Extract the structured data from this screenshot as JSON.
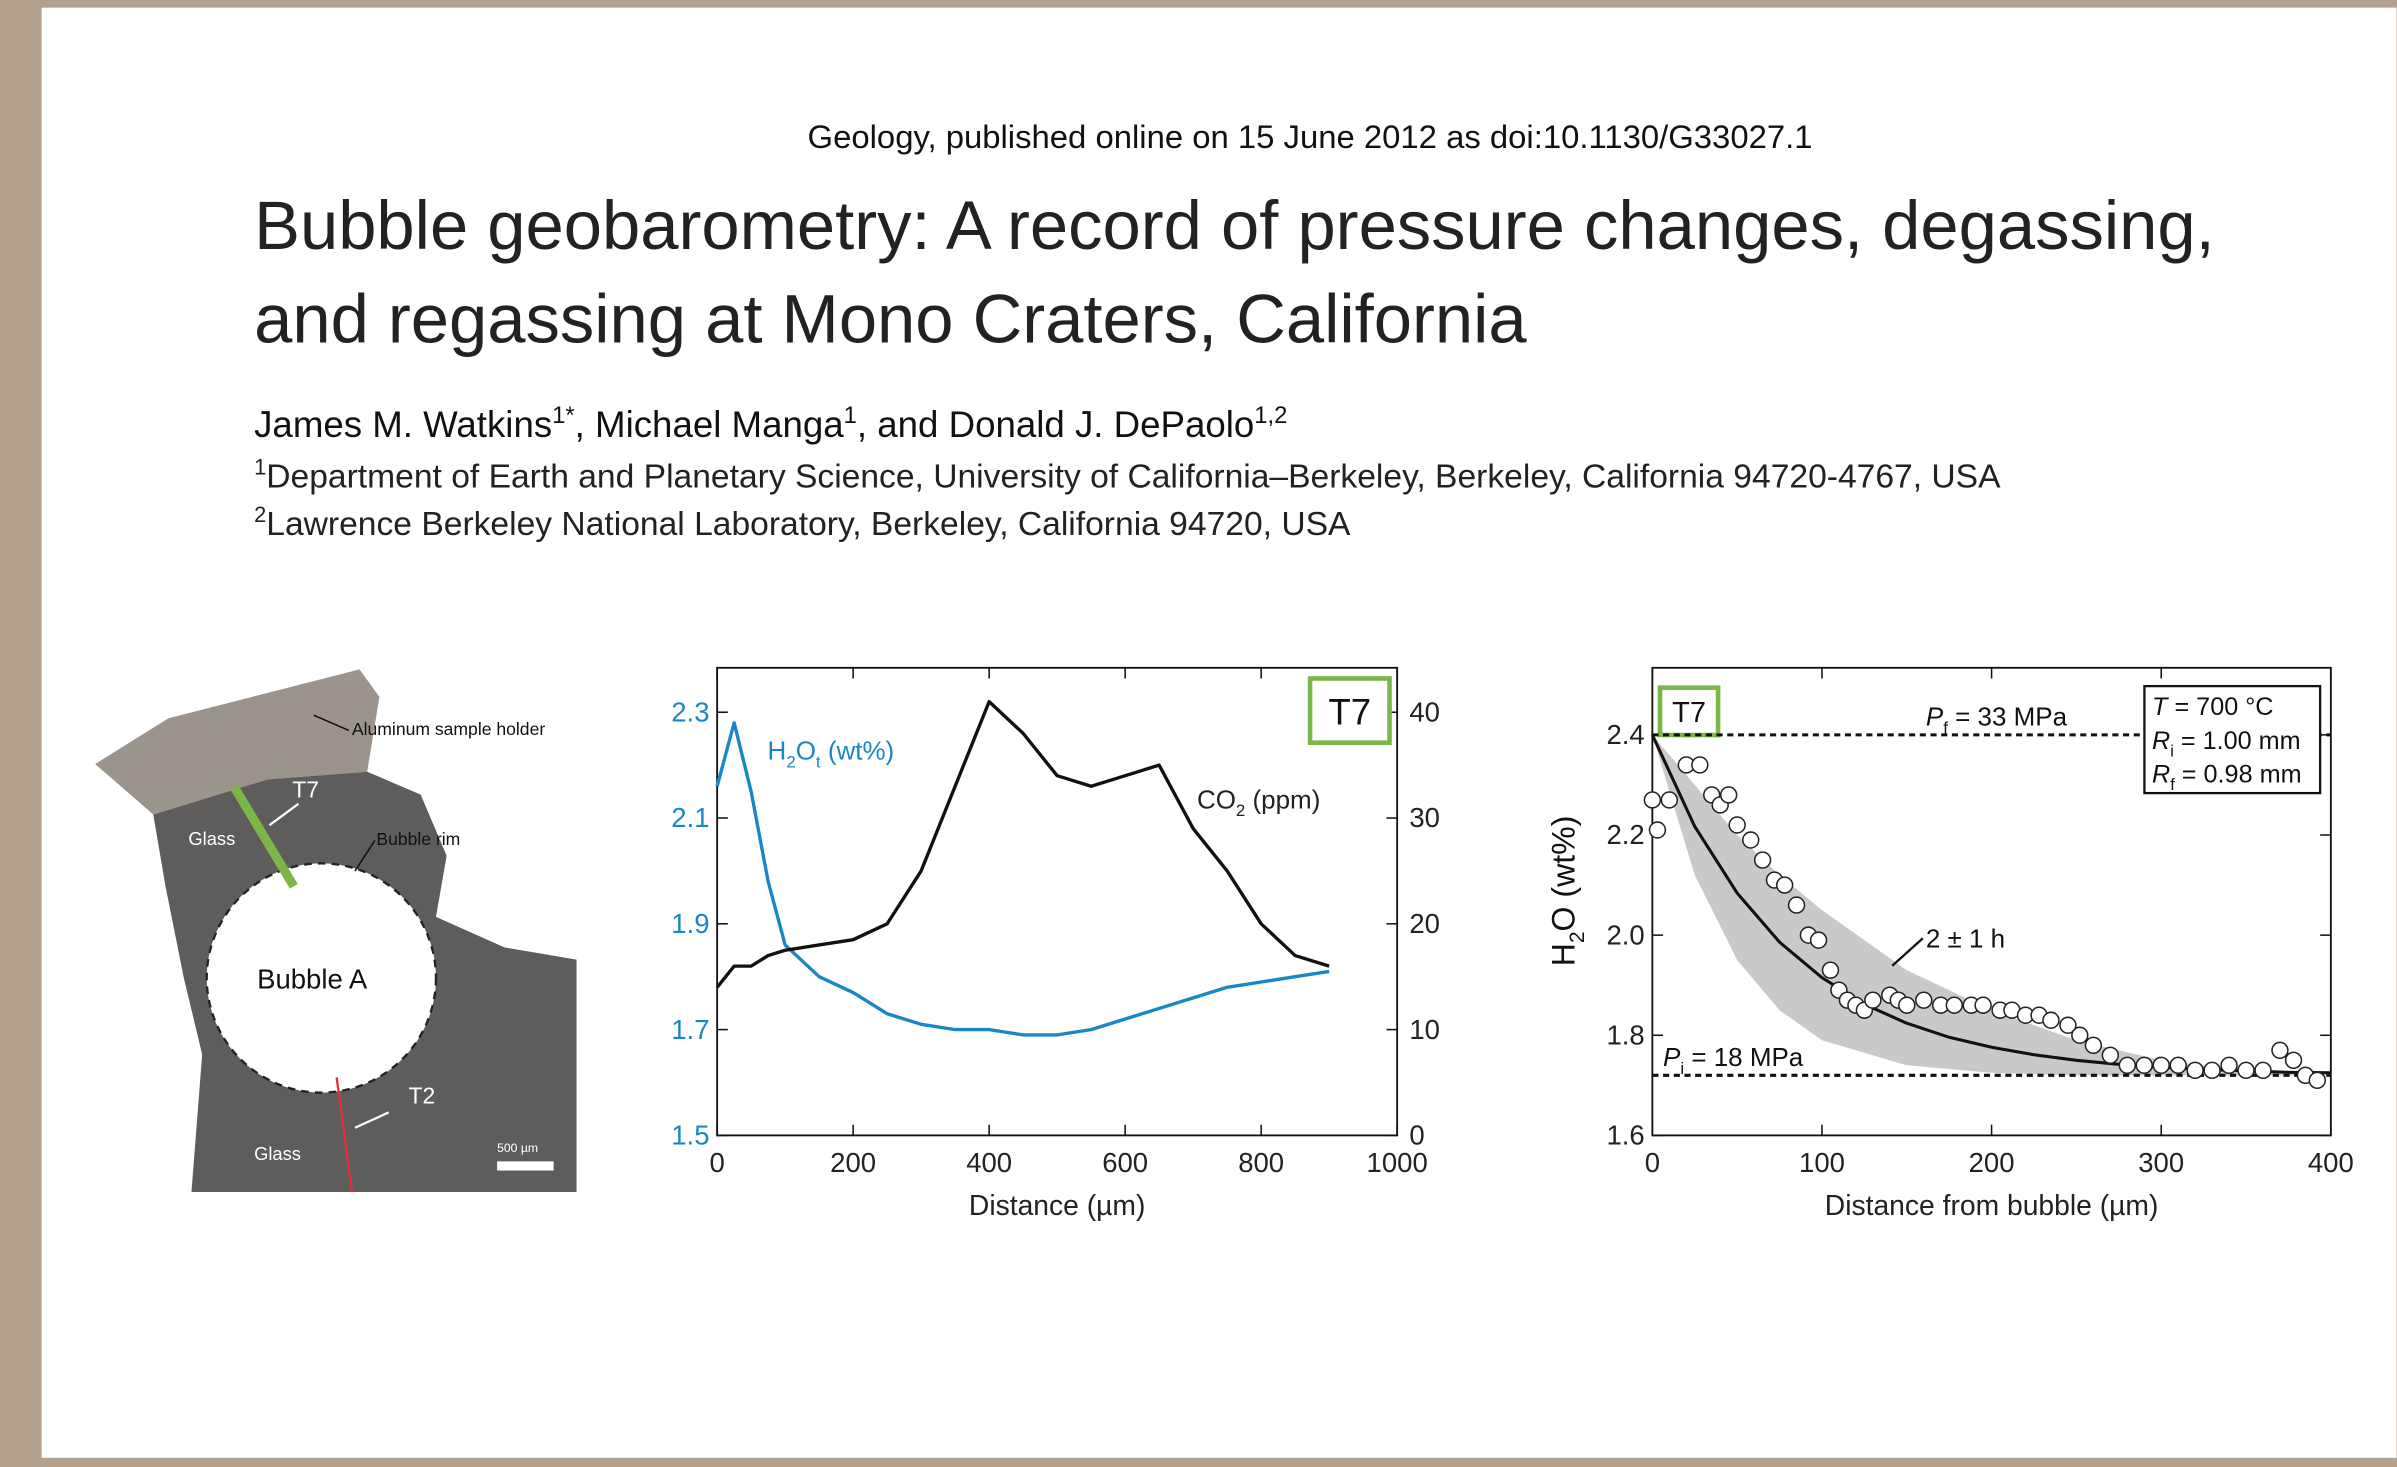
{
  "citation": "Geology, published online on 15 June 2012 as doi:10.1130/G33027.1",
  "title": [
    "Bubble geobarometry: A record of pressure changes, degassing,",
    "and regassing at Mono Craters, California"
  ],
  "authors": [
    {
      "text": "James M. Watkins"
    },
    {
      "sup": "1*"
    },
    {
      "text": ", Michael Manga"
    },
    {
      "sup": "1"
    },
    {
      "text": ", and Donald J. DePaolo"
    },
    {
      "sup": "1,2"
    }
  ],
  "affiliations": [
    [
      {
        "sup": "1"
      },
      {
        "text": "Department of Earth and Planetary Science, University of California–Berkeley, Berkeley, California 94720-4767, USA"
      }
    ],
    [
      {
        "sup": "2"
      },
      {
        "text": "Lawrence Berkeley National Laboratory, Berkeley, California 94720, USA"
      }
    ]
  ],
  "micrograph": {
    "holder": "Aluminum sample holder",
    "t7": "T7",
    "glass_top": "Glass",
    "rim": "Bubble rim",
    "bubble": "Bubble A",
    "t2": "T2",
    "glass_bottom": "Glass",
    "scale": "500 µm"
  },
  "chart_data": [
    {
      "type": "line",
      "xlabel": "Distance (µm)",
      "tag": "T7",
      "tag_color": "#7ab648",
      "x": [
        0,
        25,
        50,
        75,
        100,
        150,
        200,
        250,
        300,
        350,
        400,
        450,
        500,
        550,
        600,
        650,
        700,
        750,
        800,
        850,
        900
      ],
      "xlim": [
        0,
        1000
      ],
      "xticks": [
        0,
        200,
        400,
        600,
        800,
        1000
      ],
      "ylim": [
        1.5,
        2.384
      ],
      "yticks": [
        1.5,
        1.7,
        1.9,
        2.1,
        2.3
      ],
      "y2lim": [
        0,
        44.2
      ],
      "y2ticks": [
        0,
        10,
        20,
        30,
        40
      ],
      "series": [
        {
          "label": [
            {
              "text": "H"
            },
            {
              "sub": "2"
            },
            {
              "text": "O"
            },
            {
              "sub": "t"
            },
            {
              "text": " (wt%)"
            }
          ],
          "color": "#1a87c3",
          "values": [
            2.16,
            2.28,
            2.15,
            1.98,
            1.86,
            1.8,
            1.77,
            1.73,
            1.71,
            1.7,
            1.7,
            1.69,
            1.69,
            1.7,
            1.72,
            1.74,
            1.76,
            1.78,
            1.79,
            1.8,
            1.81
          ]
        },
        {
          "label": [
            {
              "text": "CO"
            },
            {
              "sub": "2"
            },
            {
              "text": " (ppm)"
            }
          ],
          "color": "#111111",
          "axis": "y2",
          "values": [
            14,
            16,
            16,
            17,
            17.5,
            18,
            18.5,
            20,
            25,
            33,
            41,
            38,
            34,
            33,
            34,
            35,
            29,
            25,
            20,
            17,
            16
          ]
        }
      ]
    },
    {
      "type": "scatter",
      "xlabel": "Distance from bubble (µm)",
      "ylabel": [
        {
          "text": "H"
        },
        {
          "sub": "2"
        },
        {
          "text": "O (wt%)"
        }
      ],
      "tag": "T7",
      "tag_color": "#7ab648",
      "xlim": [
        0,
        400
      ],
      "xticks": [
        0,
        100,
        200,
        300,
        400
      ],
      "ylim": [
        1.6,
        2.534
      ],
      "yticks": [
        1.6,
        1.8,
        {
          "value": 2,
          "label": "2.0"
        },
        2.2,
        2.4
      ],
      "points": {
        "x": [
          0,
          3,
          10,
          20,
          28,
          35,
          40,
          45,
          50,
          58,
          65,
          72,
          78,
          85,
          92,
          98,
          105,
          110,
          115,
          120,
          125,
          130,
          140,
          145,
          150,
          160,
          170,
          178,
          188,
          195,
          205,
          212,
          220,
          228,
          235,
          245,
          252,
          260,
          270,
          280,
          290,
          300,
          310,
          320,
          330,
          340,
          350,
          360,
          370,
          378,
          385,
          392
        ],
        "y": [
          2.27,
          2.21,
          2.27,
          2.34,
          2.34,
          2.28,
          2.26,
          2.28,
          2.22,
          2.19,
          2.15,
          2.11,
          2.1,
          2.06,
          2,
          1.99,
          1.93,
          1.89,
          1.87,
          1.86,
          1.85,
          1.87,
          1.88,
          1.87,
          1.86,
          1.87,
          1.86,
          1.86,
          1.86,
          1.86,
          1.85,
          1.85,
          1.84,
          1.84,
          1.83,
          1.82,
          1.8,
          1.78,
          1.76,
          1.74,
          1.74,
          1.74,
          1.74,
          1.73,
          1.73,
          1.74,
          1.73,
          1.73,
          1.77,
          1.75,
          1.72,
          1.71
        ]
      },
      "fit": {
        "x": [
          0,
          25,
          50,
          75,
          100,
          125,
          150,
          175,
          200,
          225,
          250,
          275,
          300,
          325,
          350,
          375,
          400
        ],
        "values": [
          2.4,
          2.217,
          2.084,
          1.986,
          1.915,
          1.862,
          1.824,
          1.796,
          1.776,
          1.761,
          1.75,
          1.742,
          1.736,
          1.732,
          1.729,
          1.726,
          1.725
        ],
        "label": "2 ± 1 h"
      },
      "band": {
        "x": [
          0,
          25,
          50,
          75,
          100,
          150,
          200,
          250,
          300,
          350,
          400
        ],
        "color": "#c9c9c9",
        "upper": [
          2.4,
          2.3,
          2.2,
          2.12,
          2.05,
          1.93,
          1.85,
          1.79,
          1.75,
          1.73,
          1.72
        ],
        "lower": [
          2.4,
          2.12,
          1.95,
          1.85,
          1.79,
          1.74,
          1.725,
          1.72,
          1.72,
          1.72,
          1.72
        ]
      },
      "hlines": [
        {
          "value": 2.4,
          "label": [
            {
              "text": "P",
              "italic": true
            },
            {
              "sub": "f"
            },
            {
              "text": " = 33 MPa"
            }
          ]
        },
        {
          "value": 1.72,
          "label": [
            {
              "text": "P",
              "italic": true
            },
            {
              "sub": "i"
            },
            {
              "text": " = 18 MPa"
            }
          ]
        }
      ],
      "inset": [
        [
          {
            "text": "T",
            "italic": true
          },
          {
            "text": " = 700 °C"
          }
        ],
        [
          {
            "text": "R",
            "italic": true
          },
          {
            "sub": "i"
          },
          {
            "text": " = 1.00 mm"
          }
        ],
        [
          {
            "text": "R",
            "italic": true
          },
          {
            "sub": "f"
          },
          {
            "text": " = 0.98 mm"
          }
        ]
      ]
    }
  ]
}
